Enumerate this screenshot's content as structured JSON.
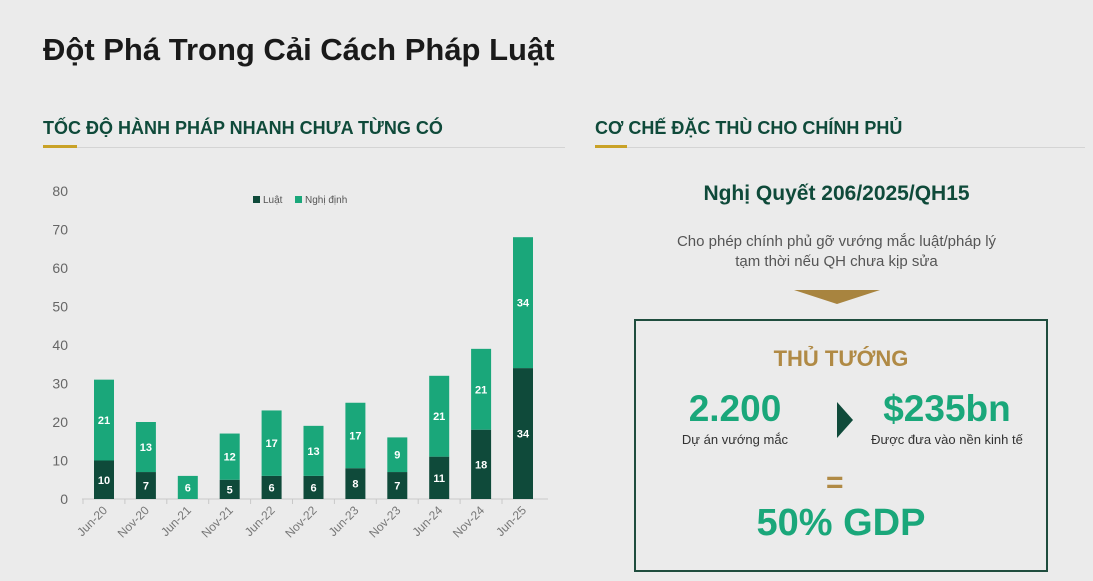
{
  "title": "Đột Phá Trong Cải Cách Pháp Luật",
  "left_section": {
    "heading": "TỐC ĐỘ HÀNH PHÁP NHANH CHƯA TỪNG CÓ"
  },
  "right_section": {
    "heading": "CƠ CHẾ ĐẶC THÙ CHO CHÍNH PHỦ",
    "resolution": "Nghị Quyết 206/2025/QH15",
    "description_line1": "Cho phép chính phủ gỡ vướng mắc luật/pháp lý",
    "description_line2": "tạm thời nếu QH chưa kịp sửa",
    "box": {
      "label": "THỦ TƯỚNG",
      "left_value": "2.200",
      "left_caption": "Dự án vướng mắc",
      "right_value": "$235bn",
      "right_caption": "Được đưa vào nền kinh tế",
      "equals": "=",
      "result": "50% GDP"
    }
  },
  "colors": {
    "dark_green": "#0f4a3a",
    "green": "#1aa77a",
    "gold": "#b08a45"
  },
  "chart_data": {
    "type": "bar",
    "stacked": true,
    "categories": [
      "Jun-20",
      "Nov-20",
      "Jun-21",
      "Nov-21",
      "Jun-22",
      "Nov-22",
      "Jun-23",
      "Nov-23",
      "Jun-24",
      "Nov-24",
      "Jun-25"
    ],
    "series": [
      {
        "name": "Luật",
        "color": "#0f4a3a",
        "values": [
          10,
          7,
          0,
          5,
          6,
          6,
          8,
          7,
          11,
          18,
          34
        ]
      },
      {
        "name": "Nghị định",
        "color": "#1aa77a",
        "values": [
          21,
          13,
          6,
          12,
          17,
          13,
          17,
          9,
          21,
          21,
          34
        ]
      }
    ],
    "ylim": [
      0,
      80
    ],
    "yticks": [
      0,
      10,
      20,
      30,
      40,
      50,
      60,
      70,
      80
    ],
    "legend": "top-center",
    "grid": false
  }
}
